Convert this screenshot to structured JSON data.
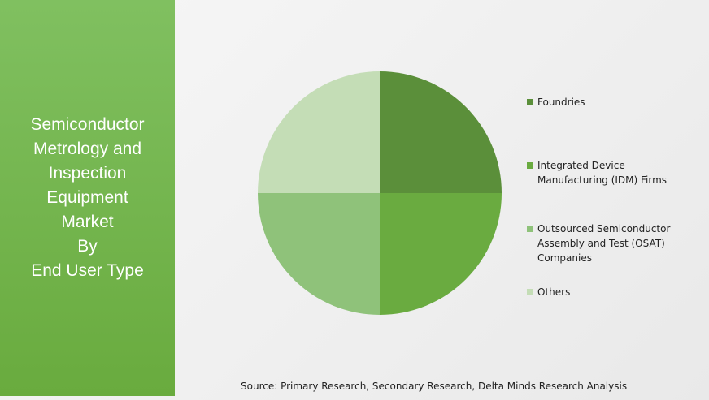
{
  "chart_data": {
    "type": "pie",
    "title": [
      "Semiconductor",
      "Metrology and",
      "Inspection",
      "Equipment",
      "Market",
      "By",
      "End User Type"
    ],
    "categories": [
      "Foundries",
      "Integrated Device Manufacturing (IDM) Firms",
      "Outsourced Semiconductor Assembly and Test (OSAT) Companies",
      "Others"
    ],
    "values": [
      25,
      25,
      25,
      25
    ],
    "colors": [
      "#5b8f3a",
      "#6aab40",
      "#8fc27a",
      "#c4ddb6"
    ],
    "source": "Source: Primary Research, Secondary Research, Delta Minds Research Analysis"
  }
}
